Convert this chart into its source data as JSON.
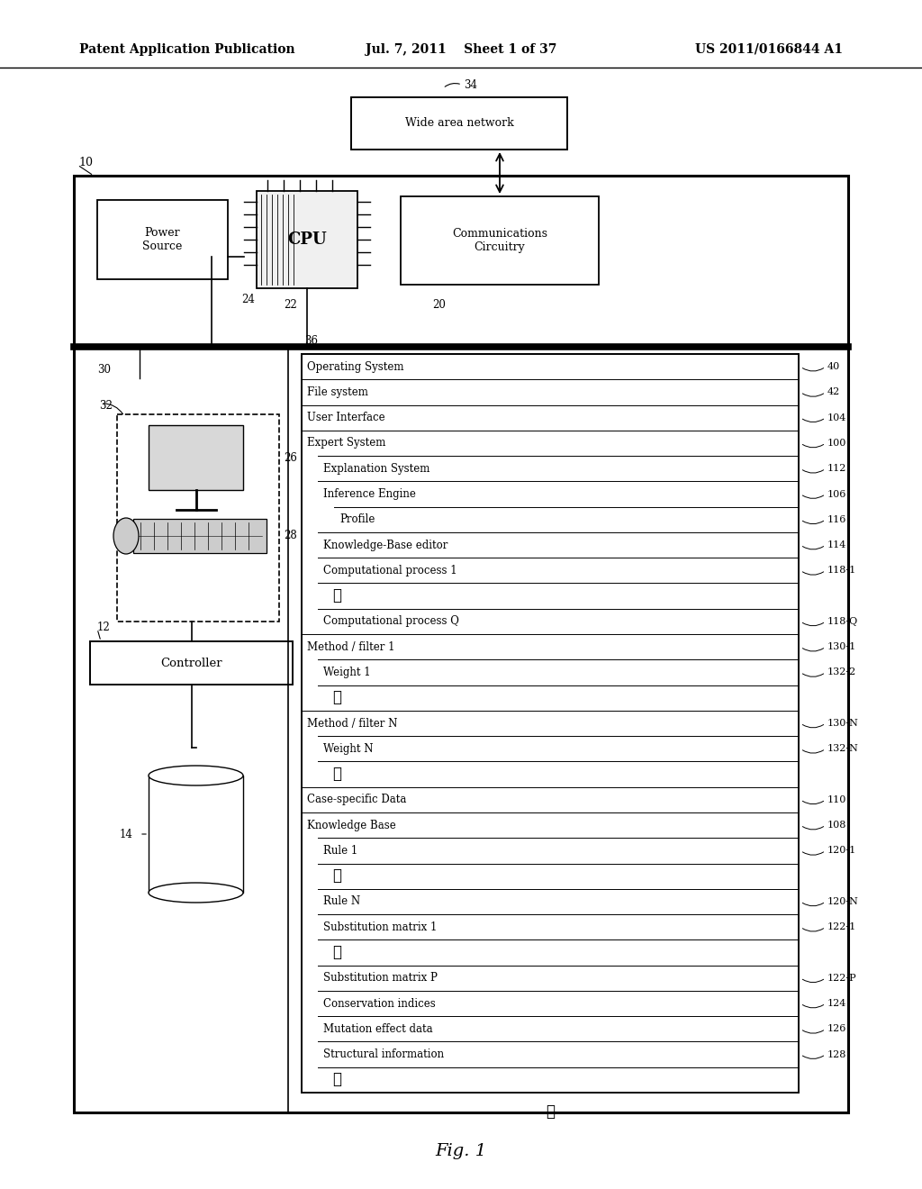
{
  "bg": "#ffffff",
  "header_left": "Patent Application Publication",
  "header_mid": "Jul. 7, 2011    Sheet 1 of 37",
  "header_right": "US 2011/0166844 A1",
  "fig_caption": "Fig. 1",
  "rows": [
    {
      "label": "Operating System",
      "indent": 0,
      "ref": "40",
      "is_dots": false
    },
    {
      "label": "File system",
      "indent": 0,
      "ref": "42",
      "is_dots": false
    },
    {
      "label": "User Interface",
      "indent": 0,
      "ref": "104",
      "is_dots": false
    },
    {
      "label": "Expert System",
      "indent": 0,
      "ref": "100",
      "is_dots": false
    },
    {
      "label": "Explanation System",
      "indent": 1,
      "ref": "112",
      "is_dots": false
    },
    {
      "label": "Inference Engine",
      "indent": 1,
      "ref": "106",
      "is_dots": false
    },
    {
      "label": "Profile",
      "indent": 2,
      "ref": "116",
      "is_dots": false
    },
    {
      "label": "Knowledge-Base editor",
      "indent": 1,
      "ref": "114",
      "is_dots": false
    },
    {
      "label": "Computational process 1",
      "indent": 1,
      "ref": "118-1",
      "is_dots": false
    },
    {
      "label": "⋮",
      "indent": 1,
      "ref": "",
      "is_dots": true
    },
    {
      "label": "Computational process Q",
      "indent": 1,
      "ref": "118-Q",
      "is_dots": false
    },
    {
      "label": "Method / filter 1",
      "indent": 0,
      "ref": "130-1",
      "is_dots": false
    },
    {
      "label": "Weight 1",
      "indent": 1,
      "ref": "132-2",
      "is_dots": false
    },
    {
      "label": "⋮",
      "indent": 1,
      "ref": "",
      "is_dots": true
    },
    {
      "label": "Method / filter N",
      "indent": 0,
      "ref": "130-N",
      "is_dots": false
    },
    {
      "label": "Weight N",
      "indent": 1,
      "ref": "132-N",
      "is_dots": false
    },
    {
      "label": "⋮",
      "indent": 1,
      "ref": "",
      "is_dots": true
    },
    {
      "label": "Case-specific Data",
      "indent": 0,
      "ref": "110",
      "is_dots": false
    },
    {
      "label": "Knowledge Base",
      "indent": 0,
      "ref": "108",
      "is_dots": false
    },
    {
      "label": "Rule 1",
      "indent": 1,
      "ref": "120-1",
      "is_dots": false
    },
    {
      "label": "⋮",
      "indent": 1,
      "ref": "",
      "is_dots": true
    },
    {
      "label": "Rule N",
      "indent": 1,
      "ref": "120-N",
      "is_dots": false
    },
    {
      "label": "Substitution matrix 1",
      "indent": 1,
      "ref": "122-1",
      "is_dots": false
    },
    {
      "label": "⋮",
      "indent": 1,
      "ref": "",
      "is_dots": true
    },
    {
      "label": "Substitution matrix P",
      "indent": 1,
      "ref": "122-P",
      "is_dots": false
    },
    {
      "label": "Conservation indices",
      "indent": 1,
      "ref": "124",
      "is_dots": false
    },
    {
      "label": "Mutation effect data",
      "indent": 1,
      "ref": "126",
      "is_dots": false
    },
    {
      "label": "Structural information",
      "indent": 1,
      "ref": "128",
      "is_dots": false
    },
    {
      "label": "⋮",
      "indent": 1,
      "ref": "",
      "is_dots": true
    }
  ]
}
